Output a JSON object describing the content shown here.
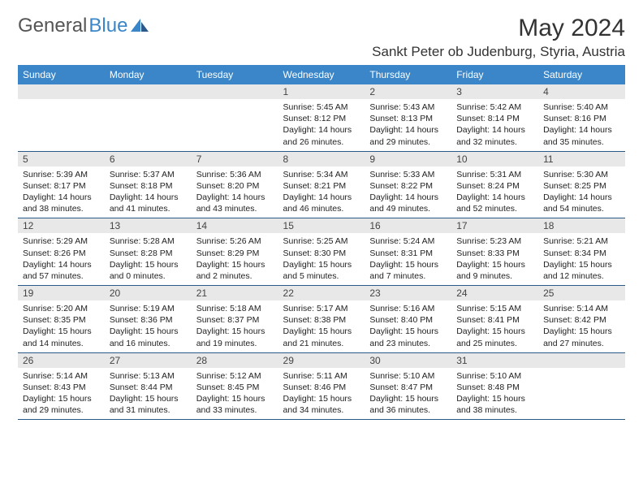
{
  "logo": {
    "text1": "General",
    "text2": "Blue"
  },
  "monthTitle": "May 2024",
  "location": "Sankt Peter ob Judenburg, Styria, Austria",
  "colors": {
    "headerBg": "#3a86c8",
    "headerText": "#ffffff",
    "dayNumBg": "#e8e8e8",
    "borderColor": "#2b5a8a",
    "pageBg": "#ffffff",
    "textColor": "#222222"
  },
  "dayHeaders": [
    "Sunday",
    "Monday",
    "Tuesday",
    "Wednesday",
    "Thursday",
    "Friday",
    "Saturday"
  ],
  "weeks": [
    [
      null,
      null,
      null,
      {
        "n": "1",
        "sr": "5:45 AM",
        "ss": "8:12 PM",
        "dl": "14 hours and 26 minutes."
      },
      {
        "n": "2",
        "sr": "5:43 AM",
        "ss": "8:13 PM",
        "dl": "14 hours and 29 minutes."
      },
      {
        "n": "3",
        "sr": "5:42 AM",
        "ss": "8:14 PM",
        "dl": "14 hours and 32 minutes."
      },
      {
        "n": "4",
        "sr": "5:40 AM",
        "ss": "8:16 PM",
        "dl": "14 hours and 35 minutes."
      }
    ],
    [
      {
        "n": "5",
        "sr": "5:39 AM",
        "ss": "8:17 PM",
        "dl": "14 hours and 38 minutes."
      },
      {
        "n": "6",
        "sr": "5:37 AM",
        "ss": "8:18 PM",
        "dl": "14 hours and 41 minutes."
      },
      {
        "n": "7",
        "sr": "5:36 AM",
        "ss": "8:20 PM",
        "dl": "14 hours and 43 minutes."
      },
      {
        "n": "8",
        "sr": "5:34 AM",
        "ss": "8:21 PM",
        "dl": "14 hours and 46 minutes."
      },
      {
        "n": "9",
        "sr": "5:33 AM",
        "ss": "8:22 PM",
        "dl": "14 hours and 49 minutes."
      },
      {
        "n": "10",
        "sr": "5:31 AM",
        "ss": "8:24 PM",
        "dl": "14 hours and 52 minutes."
      },
      {
        "n": "11",
        "sr": "5:30 AM",
        "ss": "8:25 PM",
        "dl": "14 hours and 54 minutes."
      }
    ],
    [
      {
        "n": "12",
        "sr": "5:29 AM",
        "ss": "8:26 PM",
        "dl": "14 hours and 57 minutes."
      },
      {
        "n": "13",
        "sr": "5:28 AM",
        "ss": "8:28 PM",
        "dl": "15 hours and 0 minutes."
      },
      {
        "n": "14",
        "sr": "5:26 AM",
        "ss": "8:29 PM",
        "dl": "15 hours and 2 minutes."
      },
      {
        "n": "15",
        "sr": "5:25 AM",
        "ss": "8:30 PM",
        "dl": "15 hours and 5 minutes."
      },
      {
        "n": "16",
        "sr": "5:24 AM",
        "ss": "8:31 PM",
        "dl": "15 hours and 7 minutes."
      },
      {
        "n": "17",
        "sr": "5:23 AM",
        "ss": "8:33 PM",
        "dl": "15 hours and 9 minutes."
      },
      {
        "n": "18",
        "sr": "5:21 AM",
        "ss": "8:34 PM",
        "dl": "15 hours and 12 minutes."
      }
    ],
    [
      {
        "n": "19",
        "sr": "5:20 AM",
        "ss": "8:35 PM",
        "dl": "15 hours and 14 minutes."
      },
      {
        "n": "20",
        "sr": "5:19 AM",
        "ss": "8:36 PM",
        "dl": "15 hours and 16 minutes."
      },
      {
        "n": "21",
        "sr": "5:18 AM",
        "ss": "8:37 PM",
        "dl": "15 hours and 19 minutes."
      },
      {
        "n": "22",
        "sr": "5:17 AM",
        "ss": "8:38 PM",
        "dl": "15 hours and 21 minutes."
      },
      {
        "n": "23",
        "sr": "5:16 AM",
        "ss": "8:40 PM",
        "dl": "15 hours and 23 minutes."
      },
      {
        "n": "24",
        "sr": "5:15 AM",
        "ss": "8:41 PM",
        "dl": "15 hours and 25 minutes."
      },
      {
        "n": "25",
        "sr": "5:14 AM",
        "ss": "8:42 PM",
        "dl": "15 hours and 27 minutes."
      }
    ],
    [
      {
        "n": "26",
        "sr": "5:14 AM",
        "ss": "8:43 PM",
        "dl": "15 hours and 29 minutes."
      },
      {
        "n": "27",
        "sr": "5:13 AM",
        "ss": "8:44 PM",
        "dl": "15 hours and 31 minutes."
      },
      {
        "n": "28",
        "sr": "5:12 AM",
        "ss": "8:45 PM",
        "dl": "15 hours and 33 minutes."
      },
      {
        "n": "29",
        "sr": "5:11 AM",
        "ss": "8:46 PM",
        "dl": "15 hours and 34 minutes."
      },
      {
        "n": "30",
        "sr": "5:10 AM",
        "ss": "8:47 PM",
        "dl": "15 hours and 36 minutes."
      },
      {
        "n": "31",
        "sr": "5:10 AM",
        "ss": "8:48 PM",
        "dl": "15 hours and 38 minutes."
      },
      null
    ]
  ],
  "labels": {
    "sunrise": "Sunrise:",
    "sunset": "Sunset:",
    "daylight": "Daylight:"
  }
}
